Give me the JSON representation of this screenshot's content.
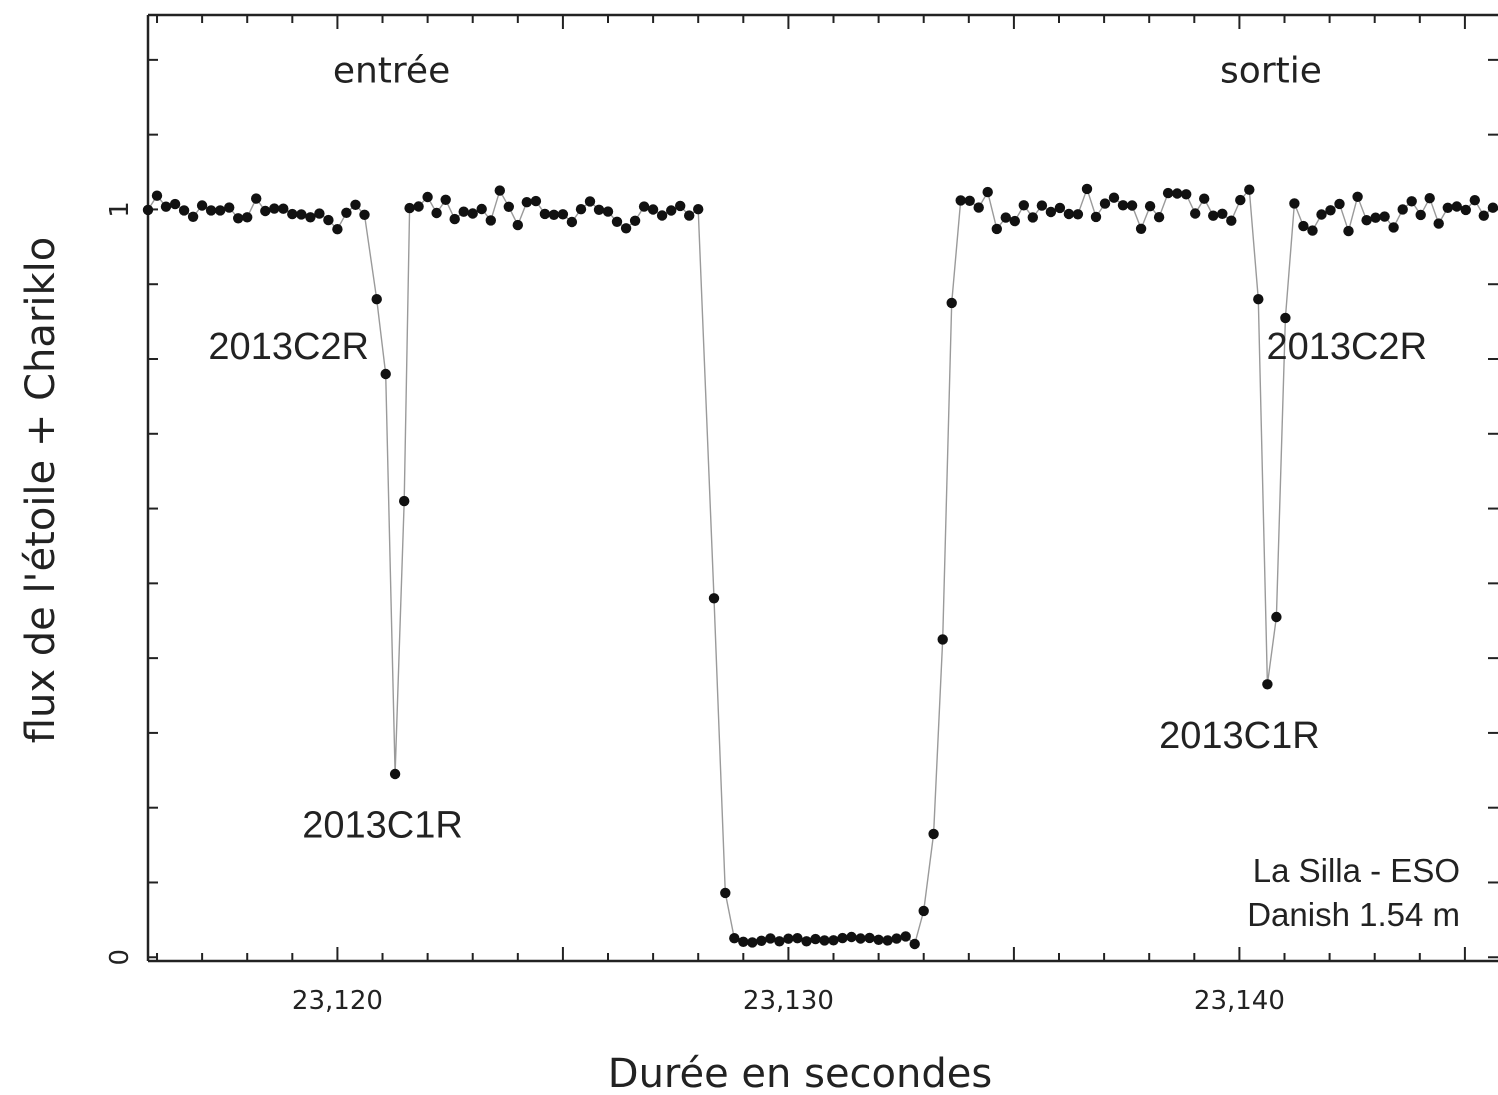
{
  "chart_data": {
    "type": "scatter",
    "title": "",
    "xlabel": "Durée en secondes",
    "ylabel": "flux de l'étoile + Chariklo",
    "xlim": [
      23115.8,
      23146.0
    ],
    "ylim": [
      -0.005,
      1.26
    ],
    "x_ticks": [
      {
        "value": 23120,
        "label": "23,120"
      },
      {
        "value": 23130,
        "label": "23,130"
      },
      {
        "value": 23140,
        "label": "23,140"
      }
    ],
    "y_ticks": [
      {
        "value": 1,
        "label": "1"
      },
      {
        "value": 0,
        "label": "0"
      }
    ],
    "phase_labels": [
      {
        "text": "entrée",
        "x": 23121.2,
        "y": 1.17
      },
      {
        "text": "sortie",
        "x": 23140.7,
        "y": 1.17
      }
    ],
    "ring_labels": [
      {
        "text": "2013C2R",
        "x": 23120.7,
        "y": 0.8,
        "anchor": "end"
      },
      {
        "text": "2013C1R",
        "x": 23121.0,
        "y": 0.16,
        "anchor": "middle"
      },
      {
        "text": "2013C2R",
        "x": 23140.6,
        "y": 0.8,
        "anchor": "start"
      },
      {
        "text": "2013C1R",
        "x": 23140.0,
        "y": 0.28,
        "anchor": "middle"
      }
    ],
    "station_note": [
      "La Silla - ESO",
      "Danish 1.54 m"
    ],
    "events": [
      {
        "x": 23120.87,
        "y": 0.88
      },
      {
        "x": 23121.07,
        "y": 0.78
      },
      {
        "x": 23121.28,
        "y": 0.245
      },
      {
        "x": 23121.48,
        "y": 0.61
      },
      {
        "x": 23128.35,
        "y": 0.48
      },
      {
        "x": 23128.6,
        "y": 0.086
      },
      {
        "x": 23133.0,
        "y": 0.062
      },
      {
        "x": 23133.22,
        "y": 0.165
      },
      {
        "x": 23133.42,
        "y": 0.425
      },
      {
        "x": 23133.62,
        "y": 0.875
      },
      {
        "x": 23140.42,
        "y": 0.88
      },
      {
        "x": 23140.62,
        "y": 0.365
      },
      {
        "x": 23140.82,
        "y": 0.455
      },
      {
        "x": 23141.02,
        "y": 0.855
      }
    ],
    "baseline": {
      "sampling_interval": 0.2,
      "pre_occultation": {
        "x_start": 23115.8,
        "x_end": 23128.15,
        "mean": 0.997,
        "scatter": 0.018
      },
      "occultation": {
        "x_start": 23128.8,
        "x_end": 23132.8,
        "mean": 0.023,
        "scatter": 0.004
      },
      "post_occultation": {
        "x_start": 23133.82,
        "x_end": 23146.0,
        "mean": 1.0,
        "scatter": 0.018
      }
    },
    "grid": false,
    "marker_color": "#111111",
    "line_color": "#9a9a9a"
  }
}
